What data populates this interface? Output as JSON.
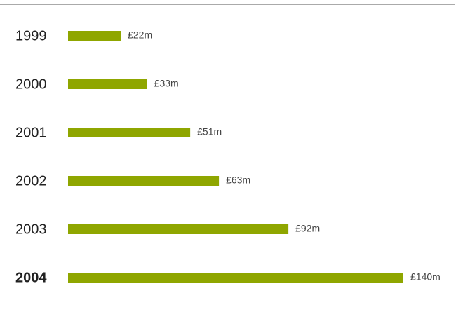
{
  "chart_data": {
    "type": "bar",
    "orientation": "horizontal",
    "categories": [
      "1999",
      "2000",
      "2001",
      "2002",
      "2003",
      "2004"
    ],
    "values": [
      22,
      33,
      51,
      63,
      92,
      140
    ],
    "value_labels": [
      "£22m",
      "£33m",
      "£51m",
      "£63m",
      "£92m",
      "£140m"
    ],
    "color": "#8fa600"
  }
}
